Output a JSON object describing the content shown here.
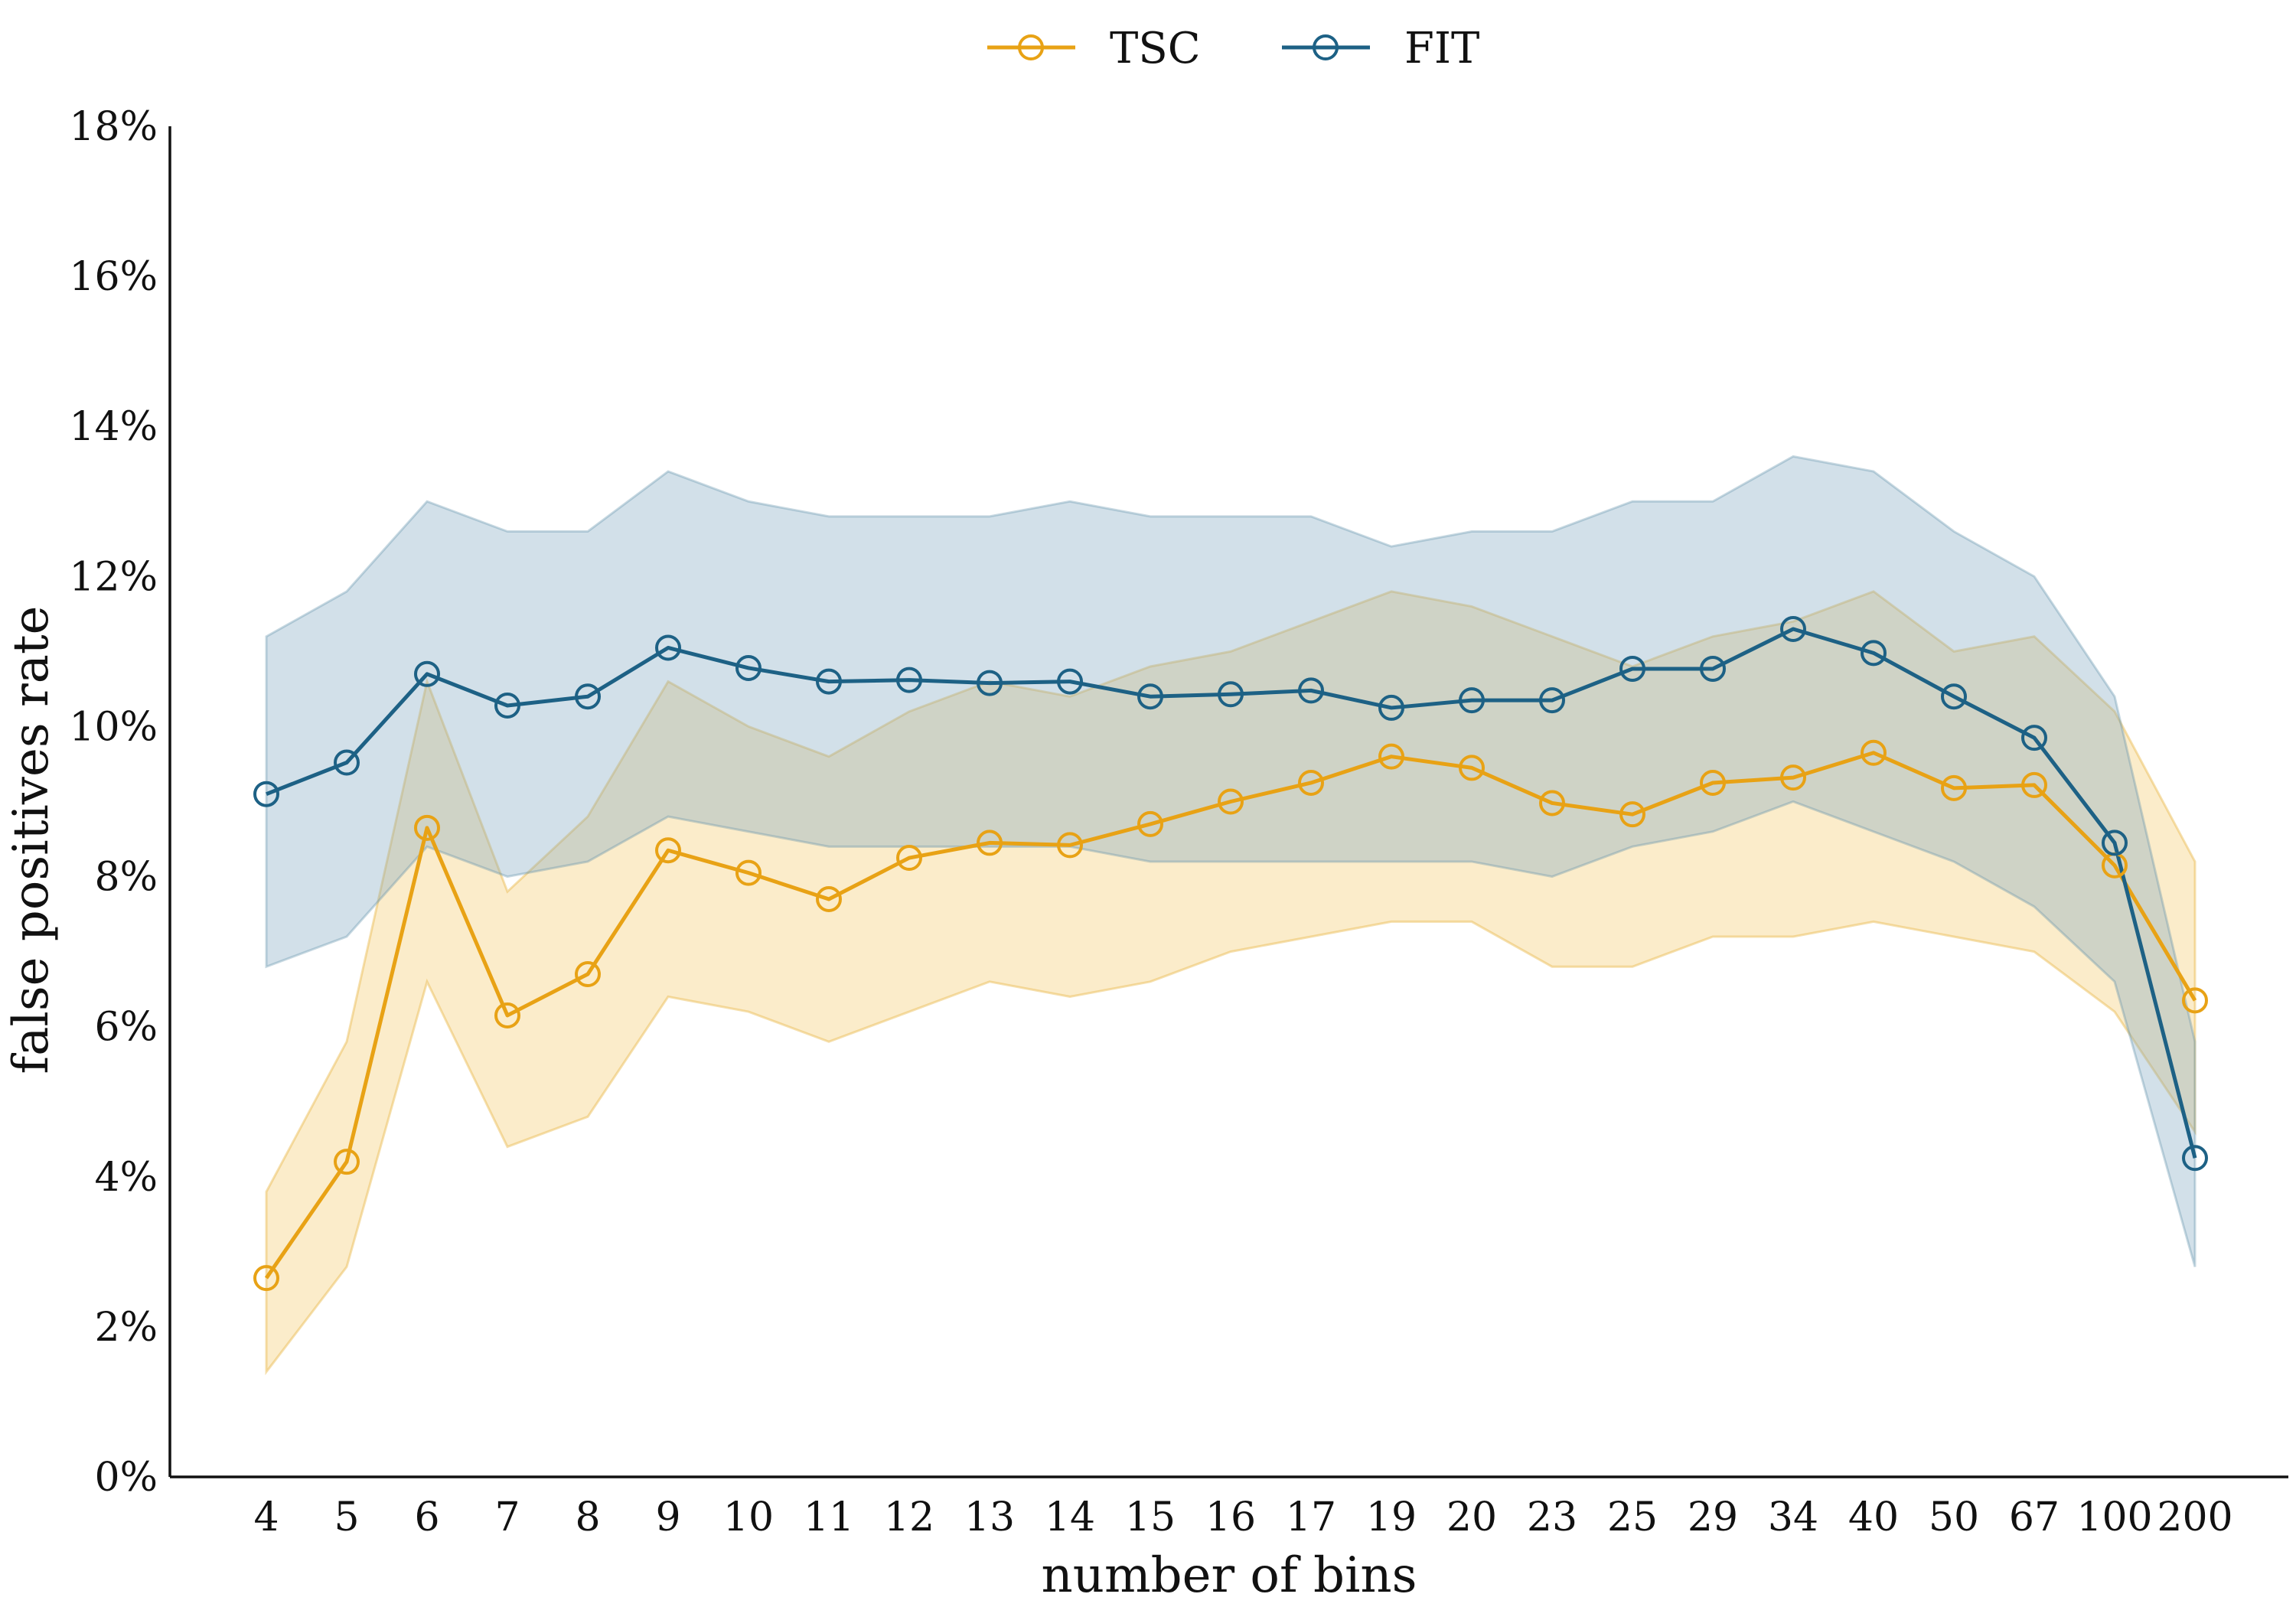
{
  "chart_data": {
    "type": "line",
    "xlabel": "number of bins",
    "ylabel": "false positives rate",
    "categories": [
      "4",
      "5",
      "6",
      "7",
      "8",
      "9",
      "10",
      "11",
      "12",
      "13",
      "14",
      "15",
      "16",
      "17",
      "19",
      "20",
      "23",
      "25",
      "29",
      "34",
      "40",
      "50",
      "67",
      "100",
      "200"
    ],
    "yticks": [
      "0%",
      "2%",
      "4%",
      "6%",
      "8%",
      "10%",
      "12%",
      "14%",
      "16%",
      "18%"
    ],
    "ylim": [
      0,
      18
    ],
    "grid": false,
    "legend_position": "top-center",
    "series": [
      {
        "name": "TSC",
        "color": "#E8A215",
        "values": [
          2.65,
          4.2,
          8.65,
          6.15,
          6.7,
          8.35,
          8.05,
          7.7,
          8.25,
          8.45,
          8.42,
          8.7,
          9.0,
          9.25,
          9.6,
          9.45,
          8.98,
          8.83,
          9.25,
          9.32,
          9.65,
          9.18,
          9.22,
          8.15,
          6.35
        ],
        "lower": [
          1.4,
          2.8,
          6.6,
          4.4,
          4.8,
          6.4,
          6.2,
          5.8,
          6.2,
          6.6,
          6.4,
          6.6,
          7.0,
          7.2,
          7.4,
          7.4,
          6.8,
          6.8,
          7.2,
          7.2,
          7.4,
          7.2,
          7.0,
          6.2,
          4.6
        ],
        "upper": [
          3.8,
          5.8,
          10.6,
          7.8,
          8.8,
          10.6,
          10.0,
          9.6,
          10.2,
          10.6,
          10.4,
          10.8,
          11.0,
          11.4,
          11.8,
          11.6,
          11.2,
          10.8,
          11.2,
          11.4,
          11.8,
          11.0,
          11.2,
          10.2,
          8.2
        ]
      },
      {
        "name": "FIT",
        "color": "#1D6185",
        "values": [
          9.1,
          9.52,
          10.7,
          10.28,
          10.4,
          11.05,
          10.78,
          10.6,
          10.62,
          10.58,
          10.6,
          10.4,
          10.43,
          10.48,
          10.25,
          10.35,
          10.35,
          10.77,
          10.77,
          11.3,
          10.98,
          10.4,
          9.85,
          8.45,
          4.25
        ],
        "lower": [
          6.8,
          7.2,
          8.4,
          8.0,
          8.2,
          8.8,
          8.6,
          8.4,
          8.4,
          8.4,
          8.4,
          8.2,
          8.2,
          8.2,
          8.2,
          8.2,
          8.0,
          8.4,
          8.6,
          9.0,
          8.6,
          8.2,
          7.6,
          6.6,
          2.8
        ],
        "upper": [
          11.2,
          11.8,
          13.0,
          12.6,
          12.6,
          13.4,
          13.0,
          12.8,
          12.8,
          12.8,
          13.0,
          12.8,
          12.8,
          12.8,
          12.4,
          12.6,
          12.6,
          13.0,
          13.0,
          13.6,
          13.4,
          12.6,
          12.0,
          10.4,
          5.8
        ]
      }
    ]
  }
}
